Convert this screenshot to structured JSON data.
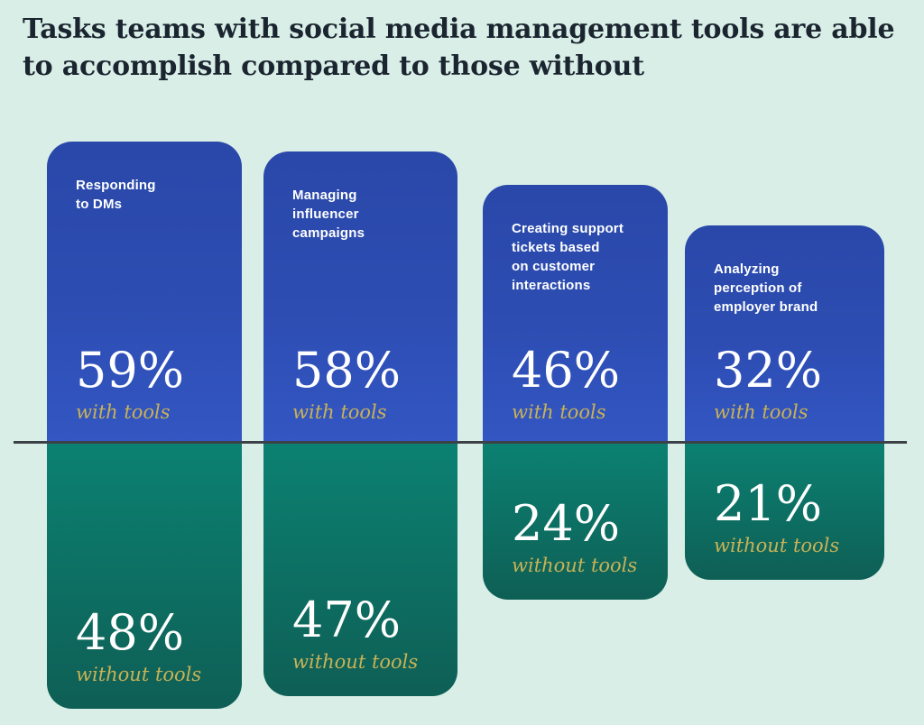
{
  "title": "Tasks teams with social media management tools are able to accomplish compared to those without",
  "title_lines": [
    "Tasks teams with social media management tools are able",
    "to accomplish compared to those without"
  ],
  "colors": {
    "background": "#d9eee7",
    "title_text": "#1b2530",
    "with_tools_bar_top": "#2a48a9",
    "with_tools_bar_bottom": "#3356c2",
    "without_tools_bar_top": "#0b8172",
    "without_tools_bar_bottom": "#0e5f55",
    "value_text": "#ffffff",
    "caption_text": "#c9b256",
    "baseline": "#3c4147"
  },
  "chart_data": {
    "type": "bar",
    "subtype": "diverging-vertical",
    "title": "Tasks teams with social media management tools are able to accomplish compared to those without",
    "categories": [
      "Responding to DMs",
      "Managing influencer campaigns",
      "Creating support tickets based on customer interactions",
      "Analyzing perception of employer brand"
    ],
    "series": [
      {
        "name": "with tools",
        "values": [
          59,
          58,
          46,
          32
        ]
      },
      {
        "name": "without tools",
        "values": [
          48,
          47,
          24,
          21
        ]
      }
    ],
    "unit": "%",
    "value_labels": true,
    "grid": false,
    "legend": "inline captions under each value",
    "layout": "with-tools bars extend above a shared horizontal baseline, without-tools bars extend below it"
  },
  "columns": [
    {
      "task": "Responding to DMs",
      "task_lines": [
        "Responding",
        "to DMs"
      ],
      "with_pct": "59%",
      "with_label": "with tools",
      "without_pct": "48%",
      "without_label": "without tools"
    },
    {
      "task": "Managing influencer campaigns",
      "task_lines": [
        "Managing",
        "influencer",
        "campaigns"
      ],
      "with_pct": "58%",
      "with_label": "with tools",
      "without_pct": "47%",
      "without_label": "without tools"
    },
    {
      "task": "Creating support tickets based on customer interactions",
      "task_lines": [
        "Creating support",
        "tickets based",
        "on customer",
        "interactions"
      ],
      "with_pct": "46%",
      "with_label": "with tools",
      "without_pct": "24%",
      "without_label": "without tools"
    },
    {
      "task": "Analyzing perception of employer brand",
      "task_lines": [
        "Analyzing",
        "perception of",
        "employer brand"
      ],
      "with_pct": "32%",
      "with_label": "with tools",
      "without_pct": "21%",
      "without_label": "without tools"
    }
  ]
}
